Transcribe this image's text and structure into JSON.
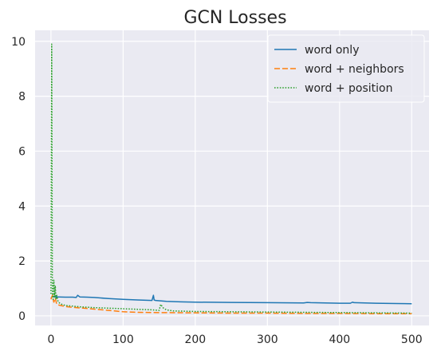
{
  "chart_data": {
    "type": "line",
    "title": "GCN Losses",
    "xlabel": "",
    "ylabel": "",
    "xlim": [
      -22,
      524
    ],
    "ylim": [
      -0.35,
      10.4
    ],
    "xticks": [
      0,
      100,
      200,
      300,
      400,
      500
    ],
    "yticks": [
      0,
      2,
      4,
      6,
      8,
      10
    ],
    "grid": true,
    "legend_position": "top-right",
    "background": "#eaeaf2",
    "series": [
      {
        "name": "word only",
        "color": "#1f77b4",
        "dash": "solid",
        "x": [
          0,
          2,
          5,
          10,
          20,
          30,
          35,
          37,
          40,
          50,
          60,
          80,
          100,
          120,
          140,
          142,
          143,
          145,
          150,
          160,
          180,
          200,
          250,
          300,
          350,
          355,
          360,
          400,
          415,
          418,
          420,
          450,
          480,
          500
        ],
        "y": [
          0.65,
          0.72,
          0.69,
          0.69,
          0.68,
          0.68,
          0.67,
          0.75,
          0.69,
          0.68,
          0.67,
          0.63,
          0.6,
          0.58,
          0.56,
          0.75,
          0.58,
          0.56,
          0.55,
          0.53,
          0.51,
          0.5,
          0.49,
          0.48,
          0.47,
          0.49,
          0.48,
          0.46,
          0.46,
          0.5,
          0.48,
          0.46,
          0.45,
          0.44
        ]
      },
      {
        "name": "word + neighbors",
        "color": "#ff7f0e",
        "dash": "dashed",
        "x": [
          0,
          2,
          4,
          6,
          8,
          10,
          15,
          20,
          30,
          50,
          80,
          100,
          120,
          150,
          200,
          250,
          300,
          350,
          400,
          450,
          500
        ],
        "y": [
          0.6,
          0.75,
          0.5,
          0.65,
          0.42,
          0.4,
          0.37,
          0.34,
          0.31,
          0.27,
          0.2,
          0.15,
          0.13,
          0.12,
          0.11,
          0.1,
          0.1,
          0.09,
          0.09,
          0.08,
          0.08
        ]
      },
      {
        "name": "word + position",
        "color": "#2ca02c",
        "dash": "dotted",
        "x": [
          0,
          1,
          2,
          3,
          4,
          5,
          6,
          7,
          8,
          10,
          15,
          20,
          40,
          60,
          80,
          100,
          120,
          140,
          150,
          152,
          154,
          156,
          160,
          170,
          200,
          250,
          300,
          350,
          400,
          450,
          500
        ],
        "y": [
          0.8,
          9.9,
          0.8,
          0.6,
          1.3,
          0.7,
          1.1,
          0.6,
          0.75,
          0.5,
          0.42,
          0.38,
          0.33,
          0.3,
          0.28,
          0.26,
          0.24,
          0.22,
          0.2,
          0.42,
          0.35,
          0.28,
          0.22,
          0.18,
          0.16,
          0.15,
          0.14,
          0.13,
          0.12,
          0.11,
          0.1
        ]
      }
    ]
  }
}
